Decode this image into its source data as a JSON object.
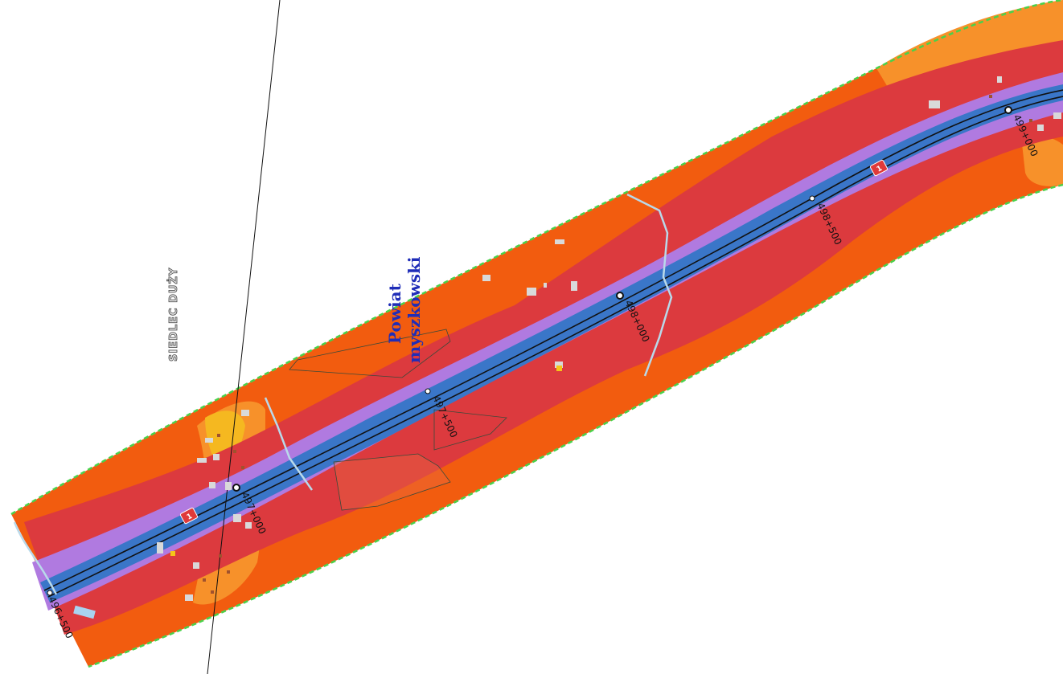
{
  "map": {
    "chainage_markers": [
      "496+500",
      "497+000",
      "497+500",
      "498+000",
      "498+500",
      "499+000"
    ],
    "road_shield": "1",
    "labels": {
      "locality": "SIEDLEC DUŻY",
      "region_line1": "Powiat",
      "region_line2": "myszkowski"
    },
    "colors": {
      "outer_zone": "#f25c0f",
      "light_zone": "#f7912a",
      "red_zone": "#dc3a3e",
      "purple_zone": "#b07ae0",
      "blue_zone": "#3a76c8",
      "boundary": "#4ad14a",
      "road_line": "#111111",
      "shield": "#e03a3a"
    }
  }
}
